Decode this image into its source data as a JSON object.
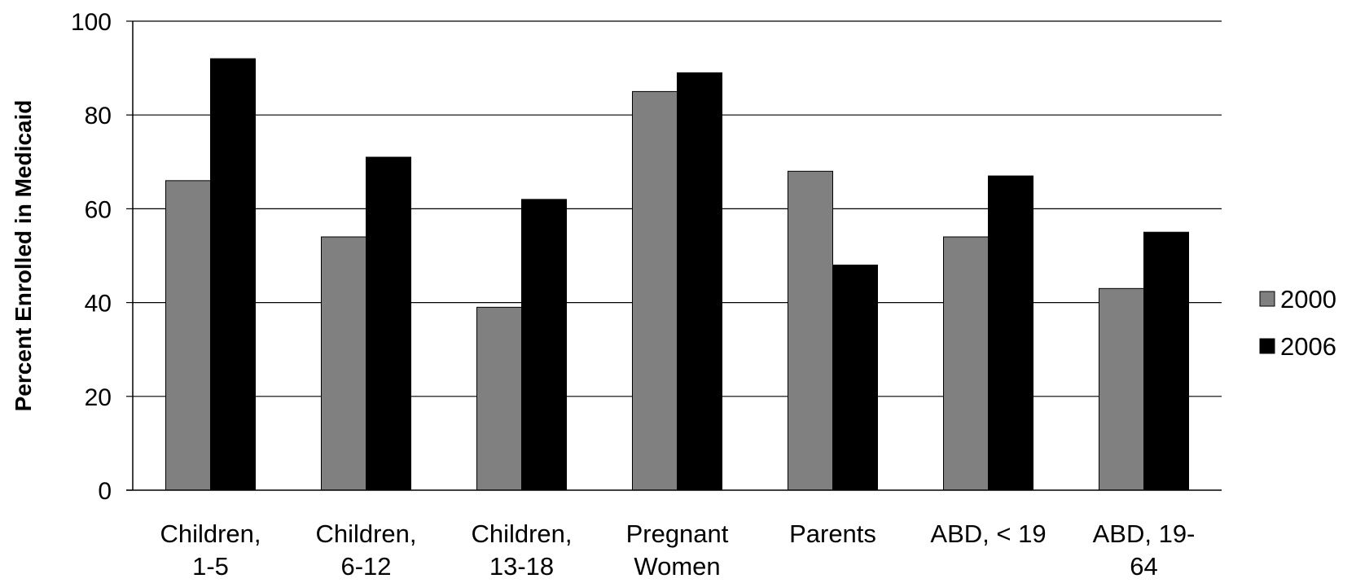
{
  "chart_data": {
    "type": "bar",
    "title": "",
    "xlabel": "",
    "ylabel": "Percent Enrolled in Medicaid",
    "ylim": [
      0,
      100
    ],
    "yticks": [
      0,
      20,
      40,
      60,
      80,
      100
    ],
    "grid": true,
    "legend_position": "right",
    "categories": [
      [
        "Children,",
        "1-5"
      ],
      [
        "Children,",
        "6-12"
      ],
      [
        "Children,",
        "13-18"
      ],
      [
        "Pregnant",
        "Women"
      ],
      [
        "Parents"
      ],
      [
        "ABD, < 19"
      ],
      [
        "ABD, 19-",
        "64"
      ]
    ],
    "series": [
      {
        "name": "2000",
        "color": "#808080",
        "values": [
          66,
          54,
          39,
          85,
          68,
          54,
          43
        ]
      },
      {
        "name": "2006",
        "color": "#000000",
        "values": [
          92,
          71,
          62,
          89,
          48,
          67,
          55
        ]
      }
    ]
  }
}
